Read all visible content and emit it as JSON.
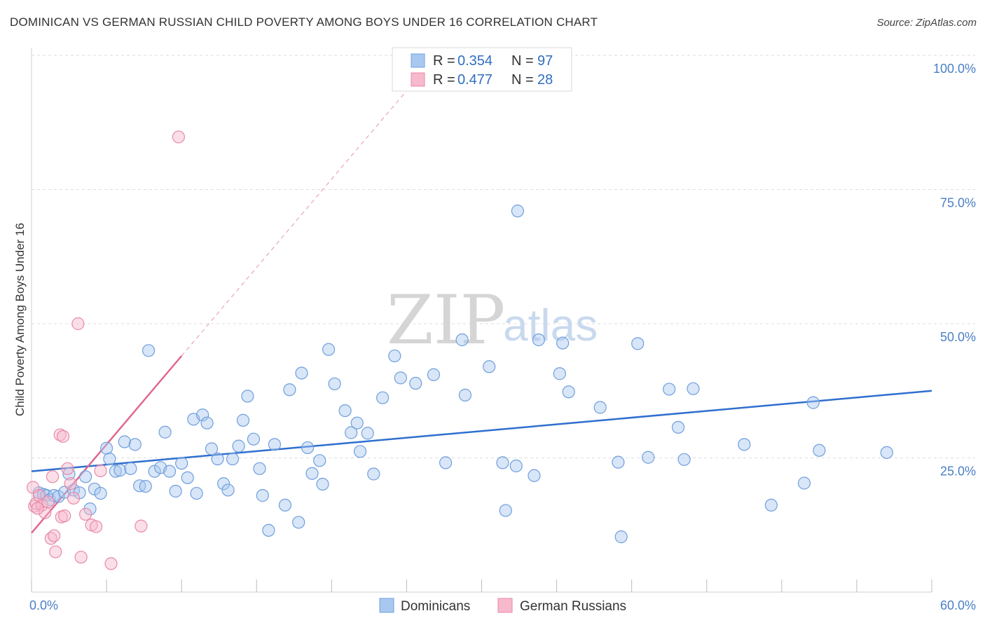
{
  "title": "DOMINICAN VS GERMAN RUSSIAN CHILD POVERTY AMONG BOYS UNDER 16 CORRELATION CHART",
  "source": "Source: ZipAtlas.com",
  "watermark": {
    "zip": "ZIP",
    "atlas": "atlas"
  },
  "colors": {
    "blue_fill": "#a9c8f0",
    "blue_stroke": "#6f9fdc",
    "blue_line": "#2f6fcf",
    "pink_fill": "#f7b9cc",
    "pink_stroke": "#e889a8",
    "pink_line": "#e0688f",
    "grid": "#dddddd",
    "axis_text": "#4a7fc6"
  },
  "legend": {
    "rows": [
      {
        "r_label": "R =",
        "r_value": "0.354",
        "n_label": "N =",
        "n_value": "97",
        "series": "Dominicans"
      },
      {
        "r_label": "R =",
        "r_value": "0.477",
        "n_label": "N =",
        "n_value": "28",
        "series": "German Russians"
      }
    ]
  },
  "chart_data": {
    "type": "scatter",
    "title": "DOMINICAN VS GERMAN RUSSIAN CHILD POVERTY AMONG BOYS UNDER 16 CORRELATION CHART",
    "xlabel": "",
    "ylabel": "Child Poverty Among Boys Under 16",
    "xlim": [
      0,
      60
    ],
    "ylim": [
      0,
      100
    ],
    "x_tick_labels": [
      "0.0%",
      "60.0%"
    ],
    "y_tick_labels": [
      "25.0%",
      "50.0%",
      "75.0%",
      "100.0%"
    ],
    "y_ticks": [
      25,
      50,
      75,
      100
    ],
    "legend_position": "top-center",
    "series": [
      {
        "name": "Dominicans",
        "trend": {
          "x": [
            0,
            60
          ],
          "y": [
            22.5,
            37.5
          ]
        },
        "points": [
          [
            0.5,
            18.5
          ],
          [
            0.8,
            18.2
          ],
          [
            1.0,
            18.0
          ],
          [
            1.2,
            17.2
          ],
          [
            1.5,
            18.0
          ],
          [
            1.8,
            17.8
          ],
          [
            2.2,
            18.6
          ],
          [
            2.5,
            22.0
          ],
          [
            2.8,
            19.0
          ],
          [
            3.2,
            18.5
          ],
          [
            3.6,
            21.5
          ],
          [
            3.9,
            15.5
          ],
          [
            4.2,
            19.2
          ],
          [
            4.6,
            18.4
          ],
          [
            5.0,
            26.8
          ],
          [
            5.2,
            24.8
          ],
          [
            5.6,
            22.5
          ],
          [
            5.9,
            22.7
          ],
          [
            6.2,
            28.0
          ],
          [
            6.6,
            23.0
          ],
          [
            6.9,
            27.5
          ],
          [
            7.2,
            19.8
          ],
          [
            7.6,
            19.7
          ],
          [
            7.8,
            45.0
          ],
          [
            8.2,
            22.5
          ],
          [
            8.6,
            23.2
          ],
          [
            8.9,
            29.8
          ],
          [
            9.2,
            22.5
          ],
          [
            9.6,
            18.8
          ],
          [
            10.0,
            24.0
          ],
          [
            10.4,
            21.3
          ],
          [
            10.8,
            32.2
          ],
          [
            11.0,
            18.4
          ],
          [
            11.4,
            33.0
          ],
          [
            11.7,
            31.5
          ],
          [
            12.0,
            26.7
          ],
          [
            12.4,
            24.8
          ],
          [
            12.8,
            20.2
          ],
          [
            13.1,
            19.0
          ],
          [
            13.4,
            24.8
          ],
          [
            13.8,
            27.2
          ],
          [
            14.1,
            32.0
          ],
          [
            14.4,
            36.5
          ],
          [
            14.8,
            28.5
          ],
          [
            15.2,
            23.0
          ],
          [
            15.4,
            18.0
          ],
          [
            15.8,
            11.5
          ],
          [
            16.2,
            27.5
          ],
          [
            16.9,
            16.2
          ],
          [
            17.2,
            37.7
          ],
          [
            17.8,
            13.0
          ],
          [
            18.0,
            40.8
          ],
          [
            18.4,
            26.9
          ],
          [
            18.7,
            22.1
          ],
          [
            19.2,
            24.5
          ],
          [
            19.4,
            20.1
          ],
          [
            19.8,
            45.2
          ],
          [
            20.2,
            38.8
          ],
          [
            20.9,
            33.8
          ],
          [
            21.3,
            29.7
          ],
          [
            21.7,
            31.5
          ],
          [
            21.9,
            26.2
          ],
          [
            22.4,
            29.6
          ],
          [
            22.8,
            22.0
          ],
          [
            23.4,
            36.2
          ],
          [
            24.2,
            44.0
          ],
          [
            24.6,
            39.9
          ],
          [
            25.6,
            38.9
          ],
          [
            26.8,
            40.5
          ],
          [
            27.6,
            24.1
          ],
          [
            28.7,
            47.0
          ],
          [
            28.9,
            36.7
          ],
          [
            30.5,
            42.0
          ],
          [
            31.4,
            24.1
          ],
          [
            31.6,
            15.2
          ],
          [
            32.3,
            23.5
          ],
          [
            32.4,
            71.0
          ],
          [
            33.5,
            21.7
          ],
          [
            33.8,
            47.0
          ],
          [
            35.2,
            40.7
          ],
          [
            35.4,
            46.4
          ],
          [
            35.8,
            37.3
          ],
          [
            37.9,
            34.4
          ],
          [
            39.1,
            24.2
          ],
          [
            39.3,
            10.3
          ],
          [
            40.4,
            46.3
          ],
          [
            41.1,
            25.1
          ],
          [
            42.5,
            37.8
          ],
          [
            43.1,
            30.7
          ],
          [
            43.5,
            24.7
          ],
          [
            44.1,
            37.9
          ],
          [
            47.5,
            27.5
          ],
          [
            49.3,
            16.2
          ],
          [
            51.5,
            20.3
          ],
          [
            52.1,
            35.3
          ],
          [
            52.5,
            26.4
          ],
          [
            57.0,
            26.0
          ]
        ]
      },
      {
        "name": "German Russians",
        "trend": {
          "x": [
            0,
            10
          ],
          "y": [
            11.0,
            44.0
          ]
        },
        "trend_extended": {
          "x": [
            10,
            27
          ],
          "y": [
            44.0,
            100.0
          ]
        },
        "points": [
          [
            0.1,
            19.5
          ],
          [
            0.2,
            16.0
          ],
          [
            0.3,
            16.5
          ],
          [
            0.5,
            18.0
          ],
          [
            0.7,
            16.2
          ],
          [
            0.9,
            14.8
          ],
          [
            1.1,
            16.8
          ],
          [
            1.3,
            10.0
          ],
          [
            1.4,
            21.5
          ],
          [
            1.5,
            10.5
          ],
          [
            1.6,
            7.5
          ],
          [
            1.9,
            29.3
          ],
          [
            2.0,
            14.0
          ],
          [
            2.1,
            29.0
          ],
          [
            2.2,
            14.2
          ],
          [
            2.4,
            23.0
          ],
          [
            2.6,
            20.2
          ],
          [
            2.8,
            17.5
          ],
          [
            3.1,
            50.0
          ],
          [
            3.3,
            6.5
          ],
          [
            3.6,
            14.5
          ],
          [
            4.0,
            12.5
          ],
          [
            4.3,
            12.2
          ],
          [
            4.6,
            22.6
          ],
          [
            5.3,
            5.3
          ],
          [
            7.3,
            12.3
          ],
          [
            9.8,
            84.8
          ],
          [
            0.4,
            15.6
          ]
        ]
      }
    ]
  }
}
